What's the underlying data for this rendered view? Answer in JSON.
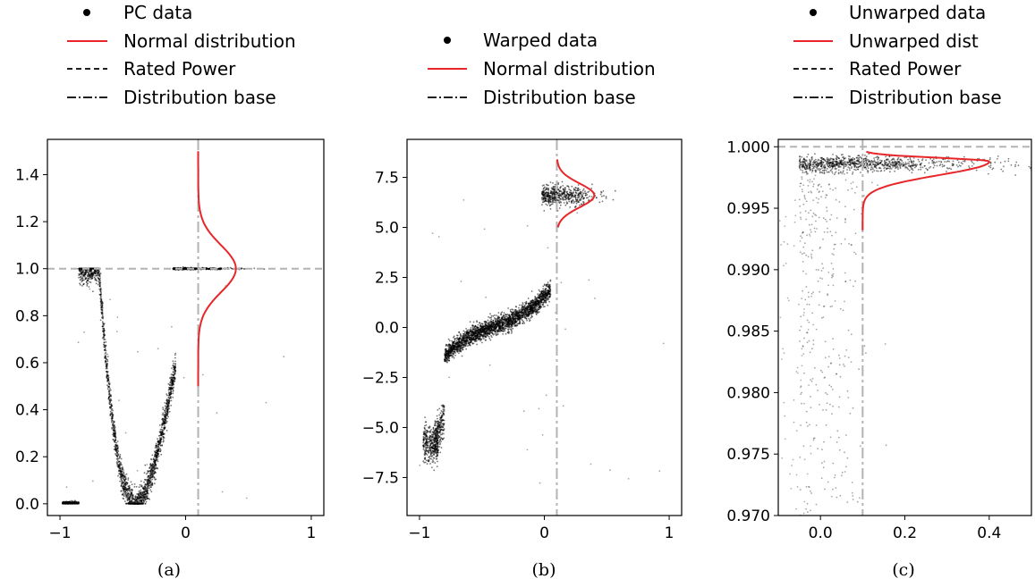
{
  "colors": {
    "data": "#000000",
    "dist": "#e8262a",
    "ref": "#b3b3b3"
  },
  "chart_data": [
    {
      "type": "scatter",
      "panel": "(a)",
      "legend": [
        "PC data",
        "Normal distribution",
        "Rated Power",
        "Distribution base"
      ],
      "xlim": [
        -1.1,
        1.1
      ],
      "ylim": [
        -0.05,
        1.55
      ],
      "xticks": [
        -1,
        0,
        1
      ],
      "xtick_labels": [
        "−1",
        "0",
        "1"
      ],
      "yticks": [
        0,
        0.2,
        0.4,
        0.6,
        0.8,
        1.0,
        1.2,
        1.4
      ],
      "ytick_labels": [
        "0.0",
        "0.2",
        "0.4",
        "0.6",
        "0.8",
        "1.0",
        "1.2",
        "1.4"
      ],
      "rated_power": 1.0,
      "distribution_base": 0.1,
      "normal_curve": {
        "mean": 1.0,
        "sd": 0.1,
        "y_range": [
          0.5,
          1.5
        ],
        "x_base": 0.1,
        "x_peak": 0.4
      }
    },
    {
      "type": "scatter",
      "panel": "(b)",
      "legend": [
        "Warped data",
        "Normal distribution",
        "Distribution base"
      ],
      "xlim": [
        -1.1,
        1.1
      ],
      "ylim": [
        -9.4,
        9.4
      ],
      "xticks": [
        -1,
        0,
        1
      ],
      "xtick_labels": [
        "−1",
        "0",
        "1"
      ],
      "yticks": [
        -7.5,
        -5.0,
        -2.5,
        0.0,
        2.5,
        5.0,
        7.5
      ],
      "ytick_labels": [
        "−7.5",
        "−5.0",
        "−2.5",
        "0.0",
        "2.5",
        "5.0",
        "7.5"
      ],
      "distribution_base": 0.1,
      "normal_curve": {
        "mean": 6.6,
        "sd": 0.6,
        "y_range": [
          5.0,
          8.4
        ],
        "x_base": 0.1,
        "x_peak": 0.4
      }
    },
    {
      "type": "scatter",
      "panel": "(c)",
      "legend": [
        "Unwarped data",
        "Unwarped dist",
        "Rated Power",
        "Distribution base"
      ],
      "xlim": [
        -0.1,
        0.5
      ],
      "ylim": [
        0.97,
        1.0006
      ],
      "xticks": [
        0.0,
        0.2,
        0.4
      ],
      "xtick_labels": [
        "0.0",
        "0.2",
        "0.4"
      ],
      "yticks": [
        0.97,
        0.975,
        0.98,
        0.985,
        0.99,
        0.995,
        1.0
      ],
      "ytick_labels": [
        "0.970",
        "0.975",
        "0.980",
        "0.985",
        "0.990",
        "0.995",
        "1.000"
      ],
      "rated_power": 1.0,
      "distribution_base": 0.1,
      "normal_curve": {
        "peak_y": 0.9988,
        "y_range": [
          0.9932,
          0.9996
        ],
        "x_base": 0.1,
        "x_peak": 0.4
      }
    }
  ]
}
